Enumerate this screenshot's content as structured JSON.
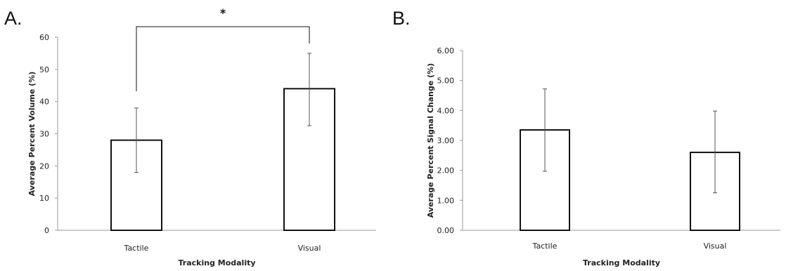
{
  "panels": {
    "a": {
      "letter": "A."
    },
    "b": {
      "letter": "B."
    }
  },
  "chart_data": [
    {
      "type": "bar",
      "panel": "A.",
      "categories": [
        "Tactile",
        "Visual"
      ],
      "values": [
        28,
        44
      ],
      "error_low": [
        18,
        32.5
      ],
      "error_high": [
        38,
        55
      ],
      "ylim": [
        0,
        60
      ],
      "yticks": [
        "0",
        "10",
        "20",
        "30",
        "40",
        "50",
        "60"
      ],
      "xlabel": "Tracking Modality",
      "ylabel": "Average Percent Volume (%)",
      "significance": {
        "between": [
          "Tactile",
          "Visual"
        ],
        "marker": "*"
      },
      "grid": false,
      "legend": "none",
      "colors": {
        "bar_fill": "#ffffff",
        "bar_edge": "#111111",
        "error_bar": "#555555",
        "axis": "#999999"
      }
    },
    {
      "type": "bar",
      "panel": "B.",
      "categories": [
        "Tactile",
        "Visual"
      ],
      "values": [
        3.35,
        2.6
      ],
      "error_low": [
        1.97,
        1.25
      ],
      "error_high": [
        4.72,
        3.98
      ],
      "ylim": [
        0,
        6
      ],
      "yticks": [
        "0.00",
        "1.00",
        "2.00",
        "3.00",
        "4.00",
        "5.00",
        "6.00"
      ],
      "xlabel": "Tracking Modality",
      "ylabel": "Average Percent Signal Change (%)",
      "grid": false,
      "legend": "none",
      "colors": {
        "bar_fill": "#ffffff",
        "bar_edge": "#111111",
        "error_bar": "#555555",
        "axis": "#999999"
      }
    }
  ]
}
